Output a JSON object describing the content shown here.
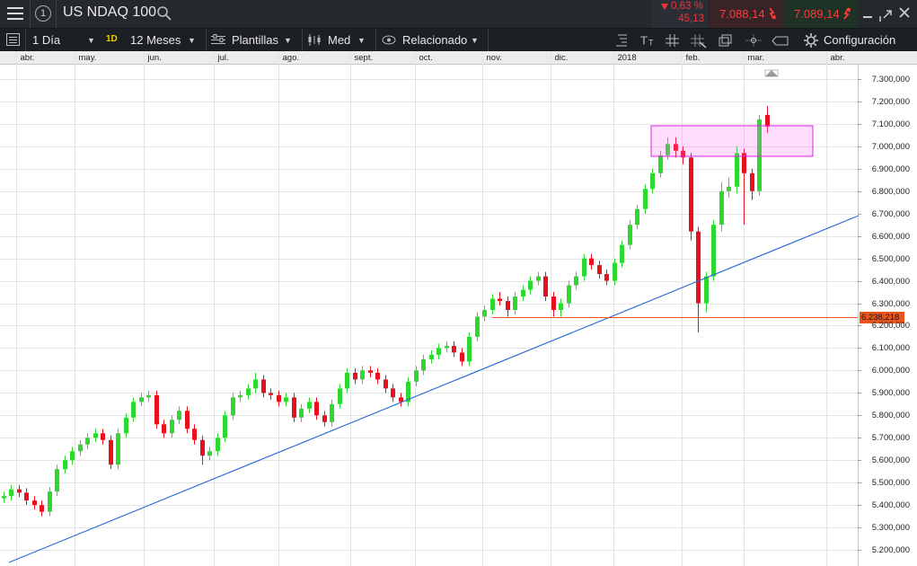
{
  "header": {
    "menu_badge": "1",
    "symbol": "US NDAQ 100",
    "change_pct": "0,63 %",
    "change_abs": "45,13",
    "sell": "7.088,14",
    "buy": "7.089,14"
  },
  "toolbar": {
    "interval": "1 Día",
    "interval_badge": "1D",
    "range": "12 Meses",
    "templates": "Plantillas",
    "price_type": "Med",
    "related": "Relacionado",
    "settings": "Configuración"
  },
  "chart_data": {
    "type": "candlestick",
    "open": [
      5430,
      5440,
      5470,
      5455,
      5420,
      5400,
      5370,
      5460,
      5560,
      5600,
      5640,
      5670,
      5700,
      5720,
      5690,
      5580,
      5720,
      5790,
      5860,
      5880,
      5890,
      5760,
      5720,
      5780,
      5820,
      5740,
      5690,
      5620,
      5640,
      5700,
      5800,
      5880,
      5890,
      5920,
      5960,
      5900,
      5890,
      5860,
      5880,
      5790,
      5830,
      5860,
      5800,
      5770,
      5850,
      5920,
      5990,
      5960,
      6000,
      5990,
      5960,
      5920,
      5880,
      5860,
      5950,
      6000,
      6050,
      6070,
      6100,
      6110,
      6080,
      6040,
      6150,
      6240,
      6270,
      6320,
      6310,
      6270,
      6330,
      6360,
      6400,
      6420,
      6330,
      6270,
      6300,
      6380,
      6420,
      6500,
      6470,
      6430,
      6400,
      6480,
      6560,
      6650,
      6720,
      6810,
      6880,
      6960,
      7010,
      6980,
      6950,
      6620,
      6300,
      6420,
      6650,
      6800,
      6820,
      6970,
      6880,
      6800,
      7140
    ],
    "high": [
      5460,
      5490,
      5490,
      5475,
      5440,
      5420,
      5480,
      5580,
      5620,
      5660,
      5690,
      5720,
      5740,
      5740,
      5710,
      5740,
      5810,
      5880,
      5900,
      5910,
      5910,
      5780,
      5800,
      5840,
      5840,
      5760,
      5710,
      5660,
      5720,
      5820,
      5900,
      5910,
      5940,
      5990,
      5980,
      5920,
      5910,
      5900,
      5900,
      5850,
      5880,
      5880,
      5820,
      5870,
      5940,
      6010,
      6010,
      6020,
      6020,
      6010,
      5980,
      5940,
      5900,
      5970,
      6020,
      6070,
      6090,
      6120,
      6130,
      6130,
      6100,
      6170,
      6260,
      6290,
      6340,
      6350,
      6330,
      6350,
      6380,
      6420,
      6440,
      6440,
      6350,
      6320,
      6400,
      6440,
      6520,
      6520,
      6490,
      6450,
      6500,
      6580,
      6670,
      6740,
      6830,
      6900,
      6980,
      7040,
      7040,
      7000,
      6970,
      6640,
      6440,
      6670,
      6840,
      6860,
      7000,
      6990,
      6900,
      7140,
      7180
    ],
    "low": [
      5410,
      5420,
      5435,
      5400,
      5380,
      5350,
      5350,
      5440,
      5540,
      5580,
      5620,
      5650,
      5680,
      5670,
      5560,
      5560,
      5700,
      5770,
      5840,
      5860,
      5740,
      5700,
      5700,
      5760,
      5720,
      5670,
      5580,
      5600,
      5620,
      5680,
      5780,
      5860,
      5870,
      5900,
      5880,
      5870,
      5840,
      5840,
      5770,
      5770,
      5810,
      5780,
      5750,
      5750,
      5830,
      5900,
      5940,
      5940,
      5970,
      5940,
      5900,
      5860,
      5840,
      5840,
      5930,
      5980,
      6030,
      6050,
      6080,
      6060,
      6020,
      6020,
      6130,
      6220,
      6250,
      6290,
      6240,
      6250,
      6310,
      6340,
      6380,
      6310,
      6240,
      6240,
      6280,
      6360,
      6400,
      6450,
      6410,
      6380,
      6380,
      6460,
      6540,
      6630,
      6700,
      6790,
      6860,
      6940,
      6950,
      6920,
      6580,
      6170,
      6260,
      6400,
      6620,
      6770,
      6790,
      6650,
      6760,
      6780,
      7060
    ],
    "close": [
      5440,
      5470,
      5455,
      5420,
      5400,
      5370,
      5460,
      5560,
      5600,
      5640,
      5670,
      5700,
      5720,
      5690,
      5580,
      5720,
      5790,
      5860,
      5880,
      5890,
      5760,
      5720,
      5780,
      5820,
      5740,
      5690,
      5620,
      5640,
      5700,
      5800,
      5880,
      5890,
      5920,
      5960,
      5900,
      5890,
      5860,
      5880,
      5790,
      5830,
      5860,
      5800,
      5770,
      5850,
      5920,
      5990,
      5960,
      6000,
      5990,
      5960,
      5920,
      5880,
      5860,
      5950,
      6000,
      6050,
      6070,
      6100,
      6110,
      6080,
      6040,
      6150,
      6240,
      6270,
      6320,
      6310,
      6270,
      6330,
      6360,
      6400,
      6420,
      6330,
      6270,
      6300,
      6380,
      6420,
      6500,
      6470,
      6430,
      6400,
      6480,
      6560,
      6650,
      6720,
      6810,
      6880,
      6960,
      7010,
      6980,
      6950,
      6620,
      6300,
      6420,
      6650,
      6800,
      6820,
      6970,
      6880,
      6800,
      7120,
      7088
    ],
    "up_color": "#2fd82f",
    "down_color": "#e8101e",
    "xlim": [
      -0.47,
      111.9
    ],
    "xticks": [
      {
        "value": 1.6,
        "label": "abr."
      },
      {
        "value": 9.3,
        "label": "may."
      },
      {
        "value": 18.4,
        "label": "jun."
      },
      {
        "value": 27.5,
        "label": "jul."
      },
      {
        "value": 36,
        "label": "ago."
      },
      {
        "value": 45.4,
        "label": "sept."
      },
      {
        "value": 53.9,
        "label": "oct."
      },
      {
        "value": 62.7,
        "label": "nov."
      },
      {
        "value": 71.6,
        "label": "dic."
      },
      {
        "value": 79.9,
        "label": "2018"
      },
      {
        "value": 88.8,
        "label": "feb."
      },
      {
        "value": 96.9,
        "label": "mar."
      },
      {
        "value": 107.8,
        "label": "abr."
      }
    ],
    "ylim": [
      5136,
      7368
    ],
    "yticks": [
      {
        "value": 5200,
        "label": "5.200,000"
      },
      {
        "value": 5300,
        "label": "5.300,000"
      },
      {
        "value": 5400,
        "label": "5.400,000"
      },
      {
        "value": 5500,
        "label": "5.500,000"
      },
      {
        "value": 5600,
        "label": "5.600,000"
      },
      {
        "value": 5700,
        "label": "5.700,000"
      },
      {
        "value": 5800,
        "label": "5.800,000"
      },
      {
        "value": 5900,
        "label": "5.900,000"
      },
      {
        "value": 6000,
        "label": "6.000,000"
      },
      {
        "value": 6100,
        "label": "6.100,000"
      },
      {
        "value": 6200,
        "label": "6.200,000"
      },
      {
        "value": 6300,
        "label": "6.300,000"
      },
      {
        "value": 6400,
        "label": "6.400,000"
      },
      {
        "value": 6500,
        "label": "6.500,000"
      },
      {
        "value": 6600,
        "label": "6.600,000"
      },
      {
        "value": 6700,
        "label": "6.700,000"
      },
      {
        "value": 6800,
        "label": "6.800,000"
      },
      {
        "value": 6900,
        "label": "6.900,000"
      },
      {
        "value": 7000,
        "label": "7.000,000"
      },
      {
        "value": 7100,
        "label": "7.100,000"
      },
      {
        "value": 7200,
        "label": "7.200,000"
      },
      {
        "value": 7300,
        "label": "7.300,000"
      }
    ],
    "grid": true,
    "price_line": {
      "value": 6238.218,
      "label": "6.238,218",
      "color": "#e8541c"
    }
  }
}
